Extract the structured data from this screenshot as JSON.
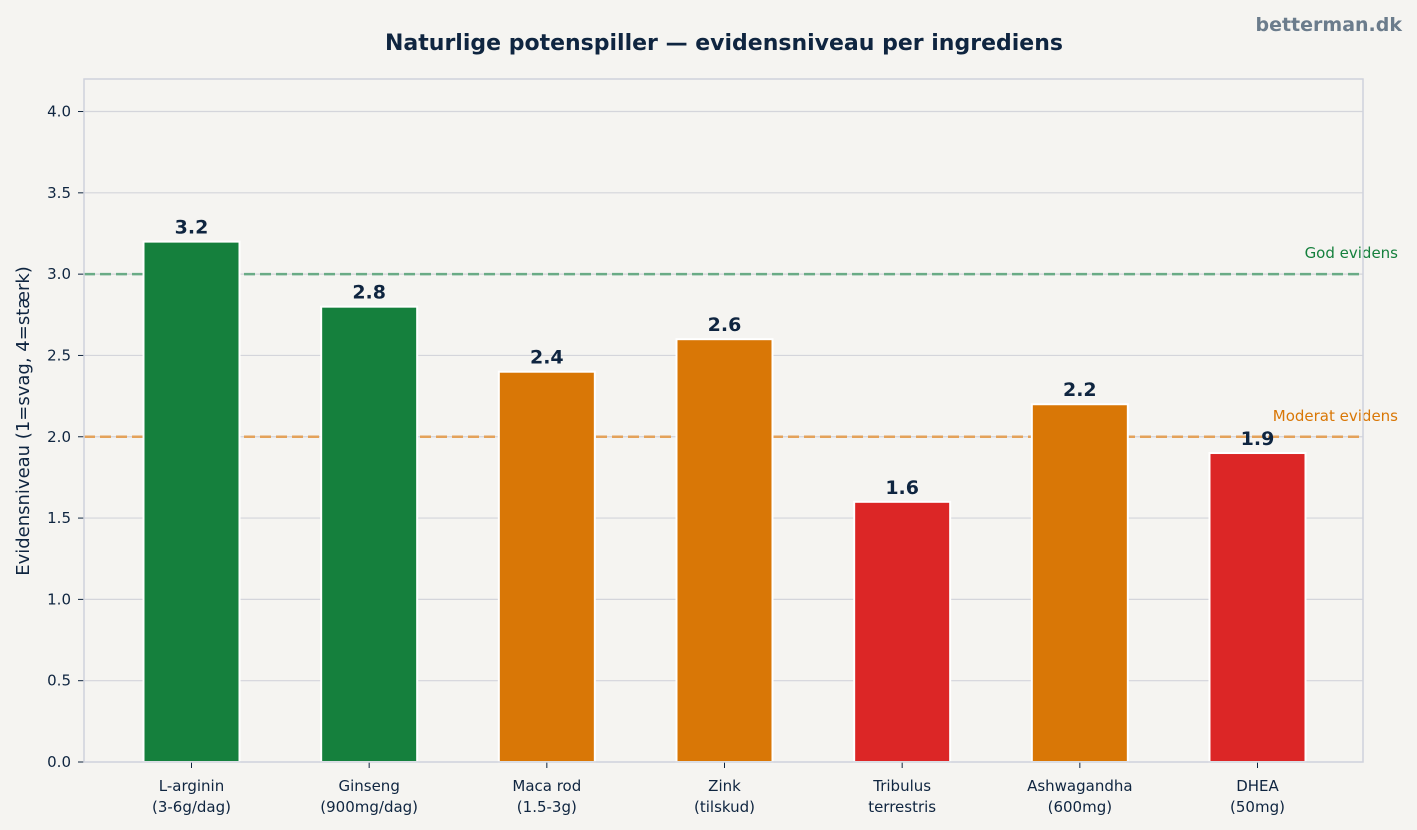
{
  "watermark": "betterman.dk",
  "chart_data": {
    "type": "bar",
    "title": "Naturlige potenspiller — evidensniveau per ingrediens",
    "xlabel": "",
    "ylabel": "Evidensniveau (1=svag, 4=stærk)",
    "ylim": [
      0,
      4.2
    ],
    "yticks": [
      "0.0",
      "0.5",
      "1.0",
      "1.5",
      "2.0",
      "2.5",
      "3.0",
      "3.5",
      "4.0"
    ],
    "grid": "horizontal",
    "categories": [
      [
        "L-arginin",
        "(3-6g/dag)"
      ],
      [
        "Ginseng",
        "(900mg/dag)"
      ],
      [
        "Maca rod",
        "(1.5-3g)"
      ],
      [
        "Zink",
        "(tilskud)"
      ],
      [
        "Tribulus",
        "terrestris"
      ],
      [
        "Ashwagandha",
        "(600mg)"
      ],
      [
        "DHEA",
        "(50mg)"
      ]
    ],
    "values": [
      3.2,
      2.8,
      2.4,
      2.6,
      1.6,
      2.2,
      1.9
    ],
    "data_labels": [
      "3.2",
      "2.8",
      "2.4",
      "2.6",
      "1.6",
      "2.2",
      "1.9"
    ],
    "bar_colors": [
      "#15803d",
      "#15803d",
      "#d97706",
      "#d97706",
      "#dc2626",
      "#d97706",
      "#dc2626"
    ],
    "reference_lines": [
      {
        "value": 3.0,
        "label": "God evidens",
        "color": "#15803d",
        "line_color": "#6aab86"
      },
      {
        "value": 2.0,
        "label": "Moderat evidens",
        "color": "#d97706",
        "line_color": "#e4a25a"
      }
    ],
    "colors": {
      "text": "#0f2540",
      "grid": "#d4d5db",
      "frame": "#cfd2dc",
      "watermark": "#6b7c8c",
      "background": "#f5f4f1"
    }
  }
}
